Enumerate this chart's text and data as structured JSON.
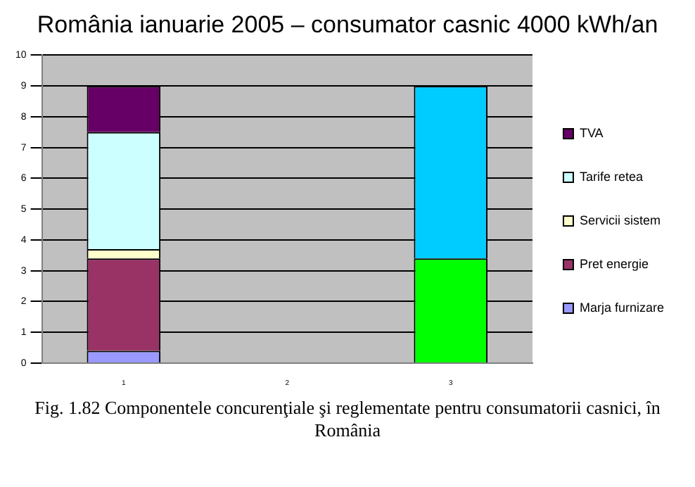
{
  "chart_data": {
    "type": "bar",
    "title": "România ianuarie 2005 – consumator casnic 4000 kWh/an",
    "categories": [
      "1",
      "2",
      "3"
    ],
    "stacked": true,
    "ylim": [
      0,
      10
    ],
    "yticks": [
      0,
      1,
      2,
      3,
      4,
      5,
      6,
      7,
      8,
      9,
      10
    ],
    "grid": "y",
    "legend": "right",
    "series": [
      {
        "name": "Marja furnizare",
        "color": "#9999ff",
        "values": [
          0.4,
          null,
          null
        ]
      },
      {
        "name": "Pret energie",
        "color": "#993366",
        "values": [
          3.0,
          null,
          null
        ]
      },
      {
        "name": "Servicii sistem",
        "color": "#ffffcc",
        "values": [
          0.3,
          null,
          null
        ]
      },
      {
        "name": "Tarife retea",
        "color": "#ccffff",
        "values": [
          3.8,
          null,
          null
        ]
      },
      {
        "name": "TVA",
        "color": "#660066",
        "values": [
          1.5,
          null,
          null
        ]
      },
      {
        "color": "#00ff00",
        "values": [
          null,
          null,
          3.4
        ]
      },
      {
        "color": "#00ccff",
        "values": [
          null,
          null,
          5.6
        ]
      }
    ],
    "annotations": [
      "Fig. 1.82 Componentele concurenţiale şi reglementate pentru consumatorii casnici, în România"
    ]
  }
}
